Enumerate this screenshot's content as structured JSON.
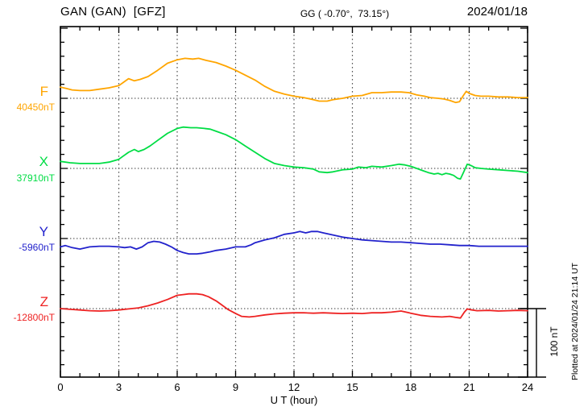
{
  "header": {
    "station": "GAN (GAN)  [GFZ]",
    "coords": "GG ( -0.70°,  73.15°)",
    "date": "2024/01/18"
  },
  "footer": {
    "xlabel": "U T (hour)",
    "scale_label": "100 nT",
    "plotted_note": "Plotted at 2024/01/24 21:14 UT"
  },
  "chart_data": {
    "type": "line",
    "title": "GAN (GAN) [GFZ] magnetogram 2024/01/18",
    "xlabel": "U T (hour)",
    "x_range": [
      0,
      24
    ],
    "x_ticks": [
      0,
      3,
      6,
      9,
      12,
      15,
      18,
      21,
      24
    ],
    "grid_hours": [
      3,
      6,
      9,
      12,
      15,
      18,
      21
    ],
    "y_tick_step_nT": 20,
    "scale_bar_nT": 100,
    "grid": "dotted",
    "legend_position": "left-margin",
    "series": [
      {
        "name": "F",
        "baseline_label": "40450nT",
        "baseline_nT": 40450,
        "color": "#FFA500",
        "points": [
          [
            0,
            16
          ],
          [
            0.3,
            14
          ],
          [
            0.6,
            12
          ],
          [
            1,
            11
          ],
          [
            1.5,
            11
          ],
          [
            2,
            13
          ],
          [
            2.5,
            15
          ],
          [
            3,
            18
          ],
          [
            3.2,
            22
          ],
          [
            3.5,
            28
          ],
          [
            3.8,
            25
          ],
          [
            4.1,
            27
          ],
          [
            4.5,
            31
          ],
          [
            5,
            40
          ],
          [
            5.5,
            50
          ],
          [
            6,
            55
          ],
          [
            6.4,
            57
          ],
          [
            6.8,
            56
          ],
          [
            7.1,
            57
          ],
          [
            7.5,
            54
          ],
          [
            8,
            51
          ],
          [
            8.5,
            46
          ],
          [
            9,
            40
          ],
          [
            9.5,
            33
          ],
          [
            10,
            26
          ],
          [
            10.5,
            17
          ],
          [
            11,
            10
          ],
          [
            11.5,
            6
          ],
          [
            12,
            3
          ],
          [
            12.5,
            1
          ],
          [
            13,
            -2
          ],
          [
            13.3,
            -4
          ],
          [
            13.7,
            -4
          ],
          [
            14,
            -2
          ],
          [
            14.5,
            0
          ],
          [
            15,
            3
          ],
          [
            15.5,
            4
          ],
          [
            16,
            8
          ],
          [
            16.5,
            8
          ],
          [
            17,
            9
          ],
          [
            17.5,
            9
          ],
          [
            17.9,
            8
          ],
          [
            18.3,
            5
          ],
          [
            18.7,
            3
          ],
          [
            19,
            1
          ],
          [
            19.4,
            0
          ],
          [
            19.7,
            -1
          ],
          [
            20,
            -3
          ],
          [
            20.3,
            -6
          ],
          [
            20.5,
            -5
          ],
          [
            20.7,
            4
          ],
          [
            20.85,
            10
          ],
          [
            21,
            7
          ],
          [
            21.3,
            4
          ],
          [
            21.6,
            3
          ],
          [
            22,
            3
          ],
          [
            22.5,
            2
          ],
          [
            23,
            2
          ],
          [
            23.5,
            1
          ],
          [
            24,
            1
          ]
        ]
      },
      {
        "name": "X",
        "baseline_label": "37910nT",
        "baseline_nT": 37910,
        "color": "#00DD44",
        "points": [
          [
            0,
            10
          ],
          [
            0.5,
            8
          ],
          [
            1,
            7
          ],
          [
            1.5,
            7
          ],
          [
            2,
            7
          ],
          [
            2.5,
            9
          ],
          [
            3,
            13
          ],
          [
            3.2,
            17
          ],
          [
            3.5,
            23
          ],
          [
            3.8,
            27
          ],
          [
            4,
            24
          ],
          [
            4.3,
            27
          ],
          [
            4.6,
            32
          ],
          [
            5,
            40
          ],
          [
            5.5,
            50
          ],
          [
            6,
            57
          ],
          [
            6.3,
            59
          ],
          [
            6.7,
            58
          ],
          [
            7,
            58
          ],
          [
            7.4,
            57
          ],
          [
            7.7,
            56
          ],
          [
            8,
            53
          ],
          [
            8.5,
            48
          ],
          [
            9,
            41
          ],
          [
            9.5,
            32
          ],
          [
            10,
            23
          ],
          [
            10.5,
            14
          ],
          [
            11,
            7
          ],
          [
            11.5,
            4
          ],
          [
            12,
            2
          ],
          [
            12.5,
            1
          ],
          [
            13,
            -1
          ],
          [
            13.3,
            -5
          ],
          [
            13.7,
            -6
          ],
          [
            14,
            -5
          ],
          [
            14.5,
            -2
          ],
          [
            15,
            -1
          ],
          [
            15.3,
            2
          ],
          [
            15.7,
            1
          ],
          [
            16,
            3
          ],
          [
            16.5,
            2
          ],
          [
            17,
            4
          ],
          [
            17.4,
            6
          ],
          [
            17.7,
            5
          ],
          [
            18,
            3
          ],
          [
            18.3,
            0
          ],
          [
            18.6,
            -3
          ],
          [
            18.9,
            -6
          ],
          [
            19.2,
            -8
          ],
          [
            19.4,
            -7
          ],
          [
            19.6,
            -9
          ],
          [
            19.8,
            -7
          ],
          [
            20,
            -8
          ],
          [
            20.2,
            -10
          ],
          [
            20.4,
            -14
          ],
          [
            20.55,
            -15
          ],
          [
            20.7,
            -6
          ],
          [
            20.9,
            6
          ],
          [
            21.1,
            4
          ],
          [
            21.3,
            1
          ],
          [
            21.6,
            0
          ],
          [
            22,
            -1
          ],
          [
            22.5,
            -2
          ],
          [
            23,
            -3
          ],
          [
            23.5,
            -4
          ],
          [
            24,
            -6
          ]
        ]
      },
      {
        "name": "Y",
        "baseline_label": "-5960nT",
        "baseline_nT": -5960,
        "color": "#2222CC",
        "points": [
          [
            0,
            -12
          ],
          [
            0.25,
            -10
          ],
          [
            0.6,
            -13
          ],
          [
            1,
            -15
          ],
          [
            1.5,
            -12
          ],
          [
            2,
            -11
          ],
          [
            2.5,
            -11
          ],
          [
            3,
            -12
          ],
          [
            3.3,
            -13
          ],
          [
            3.6,
            -12
          ],
          [
            3.9,
            -15
          ],
          [
            4.2,
            -12
          ],
          [
            4.5,
            -6
          ],
          [
            4.8,
            -4
          ],
          [
            5.1,
            -5
          ],
          [
            5.4,
            -8
          ],
          [
            5.7,
            -12
          ],
          [
            6,
            -17
          ],
          [
            6.3,
            -20
          ],
          [
            6.6,
            -22
          ],
          [
            7,
            -22
          ],
          [
            7.3,
            -21
          ],
          [
            7.7,
            -19
          ],
          [
            8,
            -17
          ],
          [
            8.5,
            -15
          ],
          [
            9,
            -12
          ],
          [
            9.5,
            -12
          ],
          [
            9.8,
            -9
          ],
          [
            10,
            -6
          ],
          [
            10.5,
            -2
          ],
          [
            11,
            1
          ],
          [
            11.5,
            6
          ],
          [
            12,
            8
          ],
          [
            12.3,
            10
          ],
          [
            12.6,
            8
          ],
          [
            12.9,
            10
          ],
          [
            13.2,
            10
          ],
          [
            13.5,
            8
          ],
          [
            14,
            5
          ],
          [
            14.5,
            2
          ],
          [
            15,
            0
          ],
          [
            15.5,
            -2
          ],
          [
            16,
            -3
          ],
          [
            16.5,
            -4
          ],
          [
            17,
            -5
          ],
          [
            17.5,
            -5
          ],
          [
            18,
            -6
          ],
          [
            18.5,
            -7
          ],
          [
            19,
            -8
          ],
          [
            19.5,
            -8
          ],
          [
            20,
            -9
          ],
          [
            20.5,
            -10
          ],
          [
            21,
            -10
          ],
          [
            21.5,
            -11
          ],
          [
            22,
            -11
          ],
          [
            22.5,
            -11
          ],
          [
            23,
            -11
          ],
          [
            23.5,
            -11
          ],
          [
            24,
            -11
          ]
        ]
      },
      {
        "name": "Z",
        "baseline_label": "-12800nT",
        "baseline_nT": -12800,
        "color": "#EE2222",
        "points": [
          [
            0,
            0
          ],
          [
            0.5,
            -1
          ],
          [
            1,
            -2
          ],
          [
            1.5,
            -3
          ],
          [
            2,
            -3.5
          ],
          [
            2.5,
            -3
          ],
          [
            3,
            -2
          ],
          [
            3.5,
            -0.5
          ],
          [
            4,
            1
          ],
          [
            4.5,
            4
          ],
          [
            5,
            8
          ],
          [
            5.5,
            13
          ],
          [
            6,
            19
          ],
          [
            6.3,
            20
          ],
          [
            6.6,
            21
          ],
          [
            7,
            21
          ],
          [
            7.3,
            20
          ],
          [
            7.6,
            17
          ],
          [
            8,
            11
          ],
          [
            8.3,
            5
          ],
          [
            8.6,
            -1
          ],
          [
            9,
            -7
          ],
          [
            9.3,
            -11
          ],
          [
            9.7,
            -12
          ],
          [
            10,
            -11
          ],
          [
            10.5,
            -9
          ],
          [
            11,
            -7.5
          ],
          [
            11.5,
            -6.5
          ],
          [
            12,
            -6
          ],
          [
            12.5,
            -6
          ],
          [
            13,
            -6.5
          ],
          [
            13.5,
            -6
          ],
          [
            14,
            -6.5
          ],
          [
            14.5,
            -7
          ],
          [
            15,
            -6.5
          ],
          [
            15.5,
            -7
          ],
          [
            16,
            -6
          ],
          [
            16.5,
            -6
          ],
          [
            17,
            -5
          ],
          [
            17.5,
            -3.5
          ],
          [
            18,
            -6.5
          ],
          [
            18.5,
            -9.5
          ],
          [
            19,
            -11
          ],
          [
            19.6,
            -12
          ],
          [
            20,
            -11
          ],
          [
            20.3,
            -12.5
          ],
          [
            20.55,
            -13.5
          ],
          [
            20.75,
            -5
          ],
          [
            20.9,
            -0.5
          ],
          [
            21.05,
            -1.5
          ],
          [
            21.4,
            -3
          ],
          [
            22,
            -2.5
          ],
          [
            22.5,
            -3.5
          ],
          [
            23,
            -3
          ],
          [
            23.5,
            -2.5
          ],
          [
            24,
            -3
          ]
        ]
      }
    ]
  }
}
